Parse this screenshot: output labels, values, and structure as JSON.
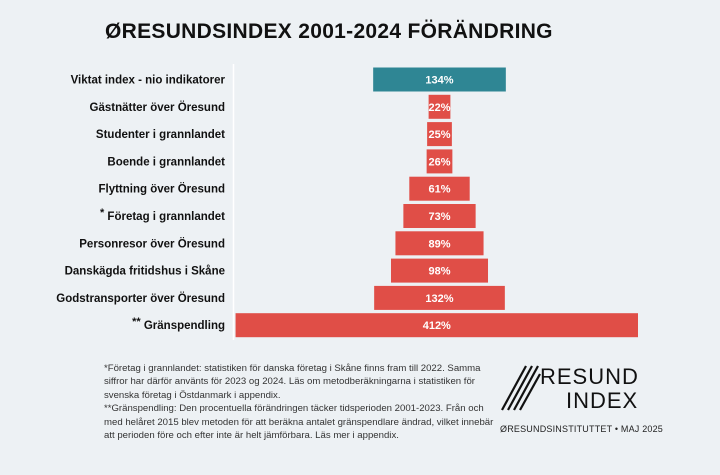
{
  "chart_data": {
    "type": "bar",
    "orientation": "horizontal-centered",
    "title": "ØRESUNDSINDEX 2001-2024 FÖRÄNDRING",
    "unit": "%",
    "categories": [
      "Viktat index - nio indikatorer",
      "Gästnätter över Öresund",
      "Studenter i grannlandet",
      "Boende i grannlandet",
      "Flyttning över Öresund",
      "Företag i grannlandet",
      "Personresor över Öresund",
      "Danskägda fritidshus i Skåne",
      "Godstransporter över Öresund",
      "Gränspendling"
    ],
    "prefixes": [
      "",
      "",
      "",
      "",
      "",
      "*",
      "",
      "",
      "",
      "**"
    ],
    "values": [
      134,
      22,
      25,
      26,
      61,
      73,
      89,
      98,
      132,
      412
    ],
    "labels": [
      "134%",
      "22%",
      "25%",
      "26%",
      "61%",
      "73%",
      "89%",
      "98%",
      "132%",
      "412%"
    ],
    "colors": {
      "index": "#2f8694",
      "indicator": "#e04e47"
    }
  },
  "notes": [
    "*Företag i grannlandet: statistiken för danska företag i Skåne finns fram till 2022. Samma siffror har därför använts för 2023 og 2024. Läs om metodberäkningarna i statistiken för svenska företag i Östdanmark i appendix.",
    "**Gränspendling: Den procentuella förändringen täcker tidsperioden 2001-2023. Från och med helåret 2015 blev metoden för att beräkna antalet gränspendlare ändrad, vilket innebär att perioden före och efter inte är helt jämförbara. Läs mer i appendix."
  ],
  "logo": {
    "line1": "RESUNDS",
    "line2": "INDEX"
  },
  "credit": "ØRESUNDSINSTITUTTET • MAJ 2025"
}
